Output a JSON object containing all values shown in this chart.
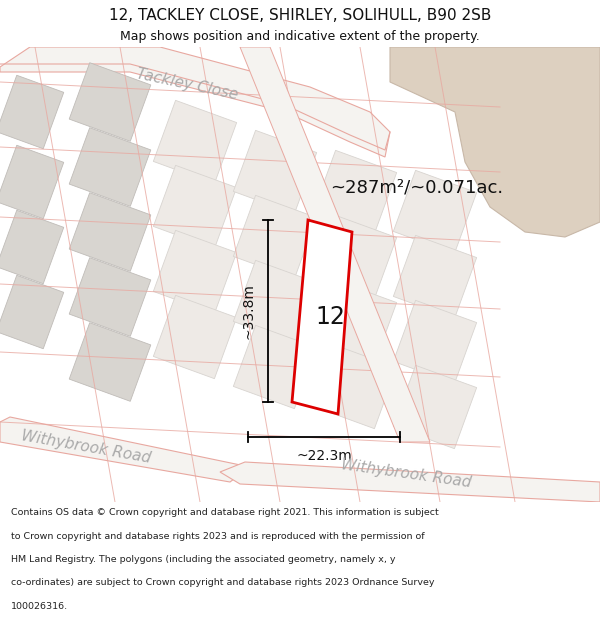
{
  "title": "12, TACKLEY CLOSE, SHIRLEY, SOLIHULL, B90 2SB",
  "subtitle": "Map shows position and indicative extent of the property.",
  "area_text": "~287m²/~0.071ac.",
  "number_label": "12",
  "dim_height": "~33.8m",
  "dim_width": "~22.3m",
  "footer_lines": [
    "Contains OS data © Crown copyright and database right 2021. This information is subject",
    "to Crown copyright and database rights 2023 and is reproduced with the permission of",
    "HM Land Registry. The polygons (including the associated geometry, namely x, y",
    "co-ordinates) are subject to Crown copyright and database rights 2023 Ordnance Survey",
    "100026316."
  ],
  "bg_color": "#ede9e4",
  "road_fill": "#f5f3f0",
  "road_stroke": "#e8a8a0",
  "plot_stroke": "#dd0000",
  "plot_fill": "#ffffff",
  "tan_fill": "#ddd0c0",
  "grey_block_fill": "#d8d5d0",
  "grey_block_edge": "#c0bcb8",
  "white_block_fill": "#eeeae6",
  "white_block_edge": "#d8d4d0",
  "road_label_color": "#aaaaaa",
  "text_color": "#111111"
}
